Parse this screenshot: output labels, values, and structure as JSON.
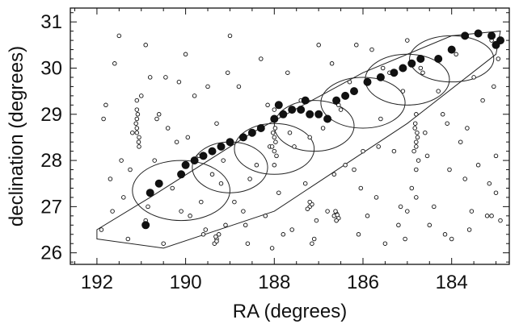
{
  "chart_data": {
    "type": "scatter",
    "title": "",
    "xlabel": "RA (degrees)",
    "ylabel": "declination (degrees)",
    "xlim": [
      192.6,
      182.7
    ],
    "ylim": [
      25.75,
      31.3
    ],
    "x_ticks": [
      192,
      190,
      188,
      186,
      184
    ],
    "y_ticks": [
      26,
      27,
      28,
      29,
      30,
      31
    ],
    "x_tick_labels": [
      "192",
      "190",
      "188",
      "186",
      "184"
    ],
    "y_tick_labels": [
      "26",
      "27",
      "28",
      "29",
      "30",
      "31"
    ],
    "grid": false,
    "legend": "none",
    "series": [
      {
        "kind": "small-open-circles",
        "x": [
          191.5,
          190.9,
          190.8,
          190.0,
          189.5,
          189.0,
          188.3,
          187.7,
          187.0,
          186.7,
          186.3,
          185.8,
          185.4,
          185.0,
          184.7,
          184.3,
          183.9,
          183.5,
          183.1,
          182.95,
          191.8,
          191.2,
          190.6,
          190.2,
          189.8,
          189.3,
          188.8,
          188.1,
          187.4,
          186.9,
          186.5,
          186.0,
          185.6,
          185.1,
          184.6,
          184.2,
          183.8,
          183.3,
          183.0,
          191.7,
          191.4,
          190.7,
          190.3,
          189.9,
          189.4,
          188.9,
          188.4,
          187.9,
          187.3,
          186.8,
          186.2,
          185.7,
          185.2,
          184.9,
          184.4,
          183.7,
          183.2,
          183.0,
          191.9,
          191.3,
          190.9,
          190.5,
          190.1,
          189.6,
          189.1,
          188.6,
          188.2,
          187.6,
          187.1,
          186.6,
          186.1,
          185.5,
          185.0,
          184.5,
          184.0,
          183.6,
          183.1,
          191.6,
          191.0,
          190.4,
          189.7,
          189.2,
          188.7,
          187.8,
          187.2,
          186.4,
          185.9,
          185.3,
          184.8,
          184.1,
          183.4,
          182.9,
          191.85,
          191.45,
          190.85,
          190.45,
          189.95,
          189.55,
          189.05,
          188.55,
          188.05,
          187.55,
          187.05,
          186.55,
          186.05,
          185.55,
          185.05,
          184.55,
          184.05,
          183.55,
          183.05,
          191.65,
          191.25,
          190.65,
          190.15,
          189.65,
          189.15,
          188.65,
          188.15,
          187.65,
          187.15,
          186.65,
          186.15,
          185.65,
          185.15,
          184.65,
          184.15,
          183.65,
          183.15,
          191.1,
          191.1,
          191.1,
          191.1,
          191.05,
          191.05,
          191.08,
          191.12,
          191.1,
          191.06,
          188.0,
          188.02,
          187.98,
          188.0,
          188.05,
          187.95,
          188.0,
          188.03,
          187.97,
          188.0,
          184.8,
          184.82,
          184.78,
          184.8,
          184.85,
          184.75,
          184.8,
          184.83,
          184.77,
          184.8,
          186.6,
          186.65,
          186.55,
          186.6,
          186.62,
          186.58,
          189.3,
          189.35,
          189.25,
          189.3,
          189.32,
          187.2,
          187.25,
          187.15,
          187.2
        ],
        "y": [
          30.7,
          30.5,
          29.8,
          30.3,
          29.6,
          30.7,
          30.2,
          29.9,
          30.5,
          30.1,
          29.7,
          30.4,
          29.9,
          30.6,
          30.0,
          29.5,
          30.3,
          29.8,
          30.6,
          30.2,
          29.2,
          28.6,
          29.0,
          28.4,
          29.4,
          28.8,
          29.6,
          28.3,
          29.3,
          28.7,
          29.1,
          28.2,
          28.9,
          29.5,
          28.6,
          29.0,
          28.4,
          29.3,
          28.1,
          27.6,
          27.2,
          28.0,
          27.4,
          26.8,
          27.7,
          27.1,
          27.9,
          27.3,
          27.5,
          26.9,
          27.8,
          27.2,
          26.6,
          27.4,
          27.0,
          27.6,
          26.8,
          27.3,
          26.5,
          26.3,
          26.7,
          26.2,
          26.9,
          26.4,
          26.6,
          26.2,
          26.8,
          26.5,
          26.3,
          26.7,
          26.4,
          26.2,
          26.9,
          26.6,
          26.3,
          26.5,
          26.8,
          30.1,
          29.4,
          28.7,
          28.1,
          27.5,
          26.9,
          26.4,
          28.5,
          27.9,
          26.8,
          28.2,
          27.2,
          28.8,
          27.9,
          26.7,
          28.9,
          28.0,
          27.0,
          29.8,
          28.5,
          26.5,
          29.9,
          27.6,
          26.1,
          28.3,
          26.7,
          29.2,
          27.4,
          30.0,
          26.3,
          28.1,
          27.8,
          26.9,
          29.6,
          26.9,
          27.8,
          28.9,
          29.7,
          27.1,
          28.0,
          26.6,
          29.2,
          28.6,
          26.2,
          27.7,
          30.5,
          28.3,
          27.0,
          29.9,
          26.4,
          28.7,
          27.5,
          29.3,
          29.1,
          28.9,
          28.7,
          28.5,
          28.3,
          29.0,
          28.8,
          28.6,
          28.4,
          29.1,
          28.9,
          28.7,
          28.5,
          28.3,
          28.1,
          27.9,
          28.6,
          28.4,
          28.2,
          29.0,
          28.8,
          28.6,
          28.4,
          28.2,
          28.0,
          27.8,
          28.7,
          28.5,
          28.3,
          26.85,
          26.8,
          26.75,
          26.7,
          26.9,
          26.82,
          26.3,
          26.2,
          26.4,
          26.25,
          26.35,
          27.0,
          26.95,
          27.05,
          27.1
        ]
      },
      {
        "kind": "large-filled-circles",
        "x": [
          190.9,
          190.8,
          190.6,
          190.1,
          190.0,
          189.8,
          189.6,
          189.4,
          189.2,
          189.0,
          188.7,
          188.5,
          188.3,
          188.0,
          187.8,
          187.6,
          187.4,
          187.2,
          187.0,
          186.8,
          186.6,
          186.4,
          186.2,
          185.9,
          185.6,
          185.3,
          185.1,
          184.9,
          184.7,
          184.3,
          184.0,
          183.7,
          183.4,
          183.1,
          182.9,
          183.0,
          187.9,
          187.3
        ],
        "y": [
          26.6,
          27.3,
          27.5,
          27.7,
          27.9,
          28.0,
          28.1,
          28.2,
          28.3,
          28.4,
          28.5,
          28.6,
          28.7,
          28.9,
          29.0,
          29.1,
          29.1,
          29.0,
          29.0,
          28.9,
          29.3,
          29.4,
          29.5,
          29.7,
          29.8,
          29.9,
          30.0,
          30.1,
          30.2,
          30.2,
          30.4,
          30.7,
          30.75,
          30.7,
          30.6,
          30.5,
          29.2,
          29.3
        ]
      }
    ],
    "ellipses": [
      {
        "cx": 190.1,
        "cy": 27.35,
        "rx": 1.1,
        "ry": 0.65
      },
      {
        "cx": 189.0,
        "cy": 27.85,
        "rx": 0.85,
        "ry": 0.55
      },
      {
        "cx": 188.0,
        "cy": 28.25,
        "rx": 0.9,
        "ry": 0.55
      },
      {
        "cx": 187.1,
        "cy": 28.75,
        "rx": 0.9,
        "ry": 0.55
      },
      {
        "cx": 186.0,
        "cy": 29.25,
        "rx": 0.95,
        "ry": 0.55
      },
      {
        "cx": 185.0,
        "cy": 29.75,
        "rx": 0.95,
        "ry": 0.55
      },
      {
        "cx": 184.0,
        "cy": 30.2,
        "rx": 0.95,
        "ry": 0.5
      }
    ],
    "band_polygon": [
      [
        192.0,
        26.3
      ],
      [
        190.5,
        26.1
      ],
      [
        188.0,
        26.9
      ],
      [
        185.0,
        28.8
      ],
      [
        183.0,
        30.3
      ],
      [
        182.9,
        30.8
      ],
      [
        184.0,
        30.7
      ],
      [
        186.0,
        29.9
      ],
      [
        188.5,
        28.6
      ],
      [
        190.8,
        27.2
      ],
      [
        192.0,
        26.5
      ]
    ]
  }
}
